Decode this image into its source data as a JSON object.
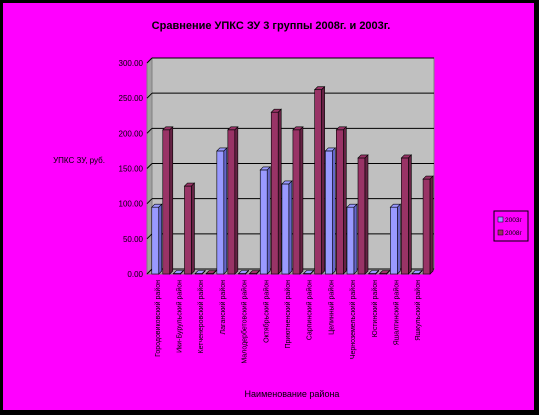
{
  "colors": {
    "chart_background": "#ff00ff",
    "plot_background": "#c0c0c0",
    "series_2008": "#993366",
    "series_2003": "#9999ff"
  },
  "chart_data": {
    "type": "bar",
    "title": "Сравнение УПКС ЗУ 3 группы 2008г. и 2003г.",
    "xlabel": "Наименование района",
    "ylabel": "УПКС ЗУ, руб.",
    "ylim": [
      0,
      300
    ],
    "yticks": [
      "0.00",
      "50.00",
      "100.00",
      "150.00",
      "200.00",
      "250.00",
      "300.00"
    ],
    "grid": true,
    "legend_position": "right",
    "categories": [
      "Городовиковский район",
      "Ики-Бурульский район",
      "Кетченеровский район",
      "Лаганский район",
      "Малодербетовский район",
      "Октябрьский район",
      "Приютненский район",
      "Сарпинский район",
      "Целинный район",
      "Черноземельский район",
      "Юстинский район",
      "Яшалтинский район",
      "Яшкульский район"
    ],
    "series": [
      {
        "name": "2003г",
        "values": [
          95,
          0,
          0,
          175,
          0,
          148,
          128,
          0,
          175,
          95,
          0,
          95,
          0
        ]
      },
      {
        "name": "2008г",
        "values": [
          205,
          125,
          0,
          205,
          0,
          230,
          205,
          262,
          205,
          165,
          0,
          165,
          135
        ]
      }
    ]
  }
}
